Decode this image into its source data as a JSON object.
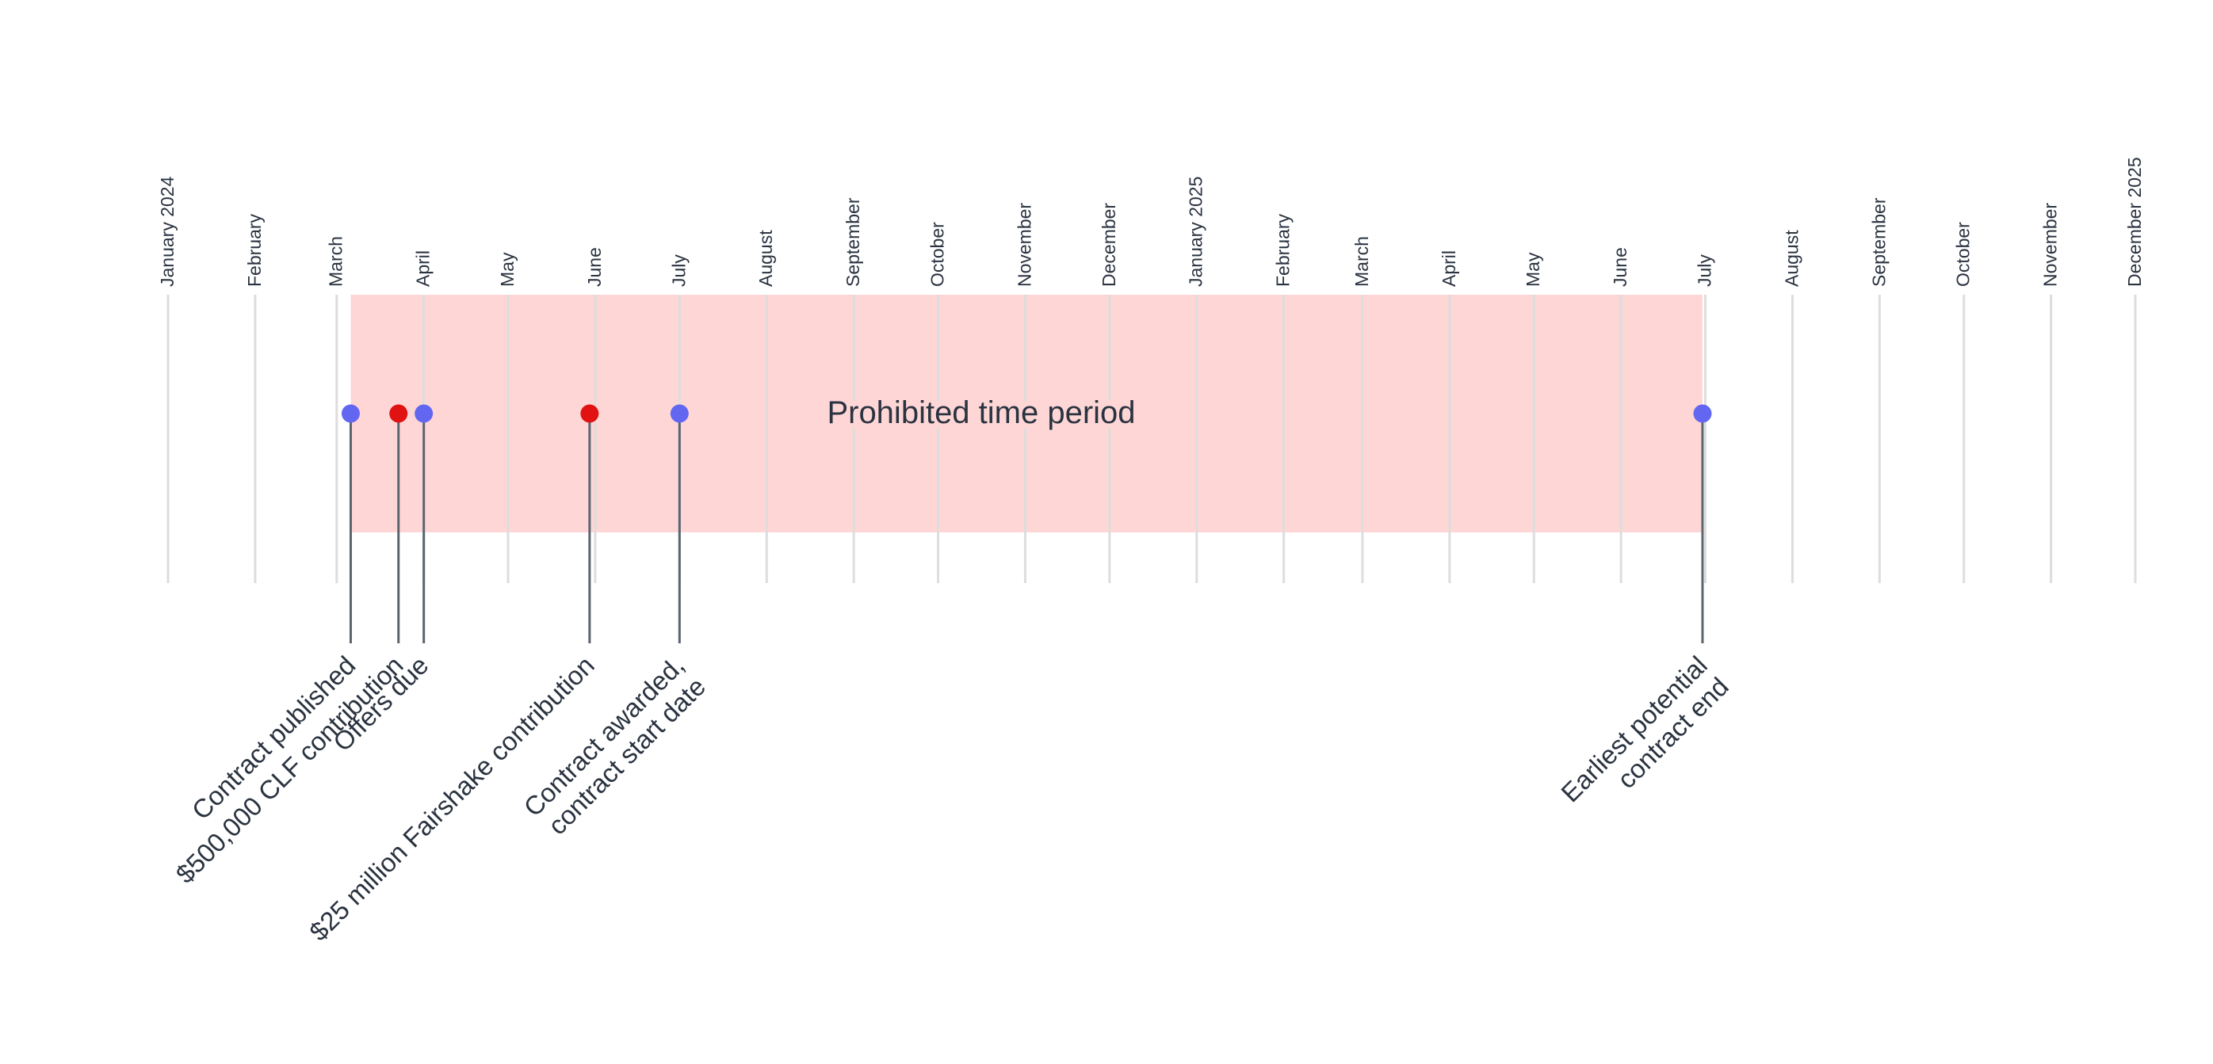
{
  "chart_data": {
    "type": "timeline",
    "x_range": [
      "2024-01-01",
      "2025-12-01"
    ],
    "ticks": [
      {
        "date": "2024-01-01",
        "label": "January 2024"
      },
      {
        "date": "2024-02-01",
        "label": "February"
      },
      {
        "date": "2024-03-01",
        "label": "March"
      },
      {
        "date": "2024-04-01",
        "label": "April"
      },
      {
        "date": "2024-05-01",
        "label": "May"
      },
      {
        "date": "2024-06-01",
        "label": "June"
      },
      {
        "date": "2024-07-01",
        "label": "July"
      },
      {
        "date": "2024-08-01",
        "label": "August"
      },
      {
        "date": "2024-09-01",
        "label": "September"
      },
      {
        "date": "2024-10-01",
        "label": "October"
      },
      {
        "date": "2024-11-01",
        "label": "November"
      },
      {
        "date": "2024-12-01",
        "label": "December"
      },
      {
        "date": "2025-01-01",
        "label": "January 2025"
      },
      {
        "date": "2025-02-01",
        "label": "February"
      },
      {
        "date": "2025-03-01",
        "label": "March"
      },
      {
        "date": "2025-04-01",
        "label": "April"
      },
      {
        "date": "2025-05-01",
        "label": "May"
      },
      {
        "date": "2025-06-01",
        "label": "June"
      },
      {
        "date": "2025-07-01",
        "label": "July"
      },
      {
        "date": "2025-08-01",
        "label": "August"
      },
      {
        "date": "2025-09-01",
        "label": "September"
      },
      {
        "date": "2025-10-01",
        "label": "October"
      },
      {
        "date": "2025-11-01",
        "label": "November"
      },
      {
        "date": "2025-12-01",
        "label": "December 2025"
      }
    ],
    "shaded_region": {
      "start": "2024-03-06",
      "end": "2025-06-30",
      "label": "Prohibited time period",
      "color": "#ffd6d6"
    },
    "events": [
      {
        "date": "2024-03-06",
        "lines": [
          "Contract published"
        ],
        "color": "#6366f1"
      },
      {
        "date": "2024-03-23",
        "lines": [
          "$500,000 CLF contribution"
        ],
        "color": "#e01212"
      },
      {
        "date": "2024-04-01",
        "lines": [
          "Offers due"
        ],
        "color": "#6366f1"
      },
      {
        "date": "2024-05-30",
        "lines": [
          "$25 million Fairshake contribution"
        ],
        "color": "#e01212"
      },
      {
        "date": "2024-07-01",
        "lines": [
          "Contract awarded,",
          "contract start date"
        ],
        "color": "#6366f1"
      },
      {
        "date": "2025-06-30",
        "lines": [
          "Earliest potential",
          "contract end"
        ],
        "color": "#6366f1"
      }
    ],
    "colors": {
      "gridline": "#dddddd",
      "stem": "#5b6570",
      "text": "#2a3340",
      "blue_marker": "#6366f1",
      "red_marker": "#e01212"
    }
  }
}
